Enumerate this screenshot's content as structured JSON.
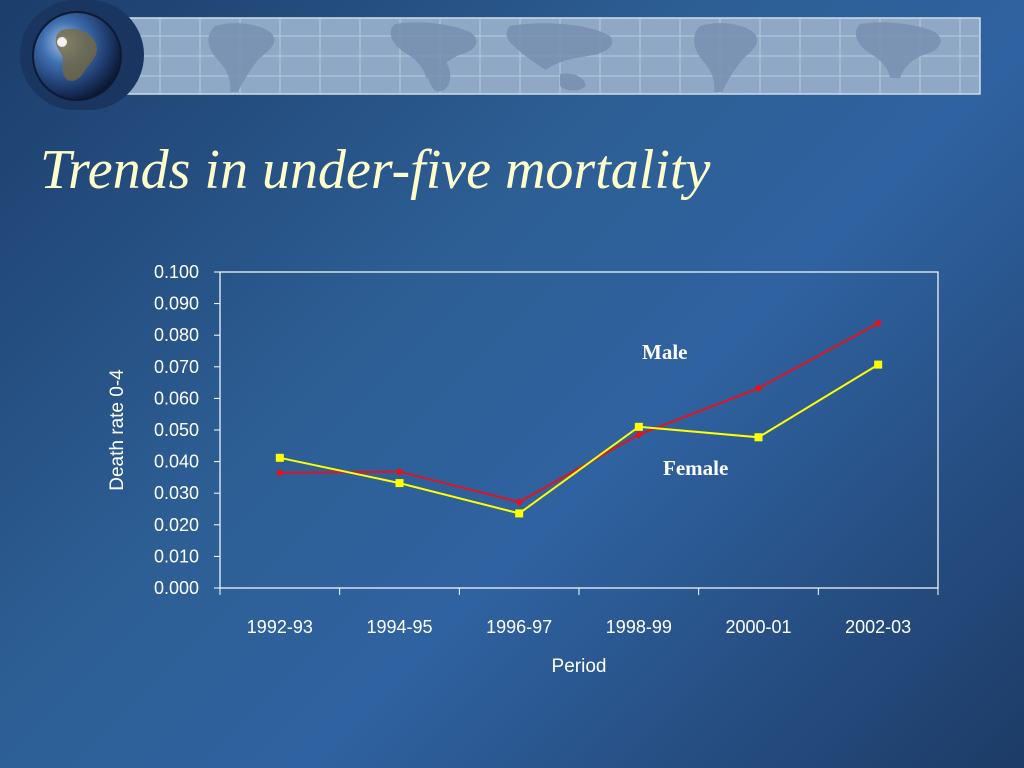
{
  "slide": {
    "title": "Trends in under-five mortality"
  },
  "colors": {
    "male_line": "#e0141e",
    "female_line": "#ffff00",
    "banner_bg": "#8fa8c6",
    "axis": "#ffffff"
  },
  "chart_data": {
    "type": "line",
    "title": "",
    "xlabel": "Period",
    "ylabel": "Death rate 0-4",
    "categories": [
      "1992-93",
      "1994-95",
      "1996-97",
      "1998-99",
      "2000-01",
      "2002-03"
    ],
    "ylim": [
      0,
      0.1
    ],
    "y_ticks": [
      "0.000",
      "0.010",
      "0.020",
      "0.030",
      "0.040",
      "0.050",
      "0.060",
      "0.070",
      "0.080",
      "0.090",
      "0.100"
    ],
    "grid": false,
    "legend": "none",
    "series": [
      {
        "name": "Male",
        "color": "#e0141e",
        "marker": "diamond",
        "values": [
          0.0365,
          0.0368,
          0.0272,
          0.0485,
          0.0632,
          0.0838
        ]
      },
      {
        "name": "Female",
        "color": "#ffff00",
        "marker": "square",
        "values": [
          0.0412,
          0.0332,
          0.0236,
          0.051,
          0.0477,
          0.0707
        ]
      }
    ]
  }
}
